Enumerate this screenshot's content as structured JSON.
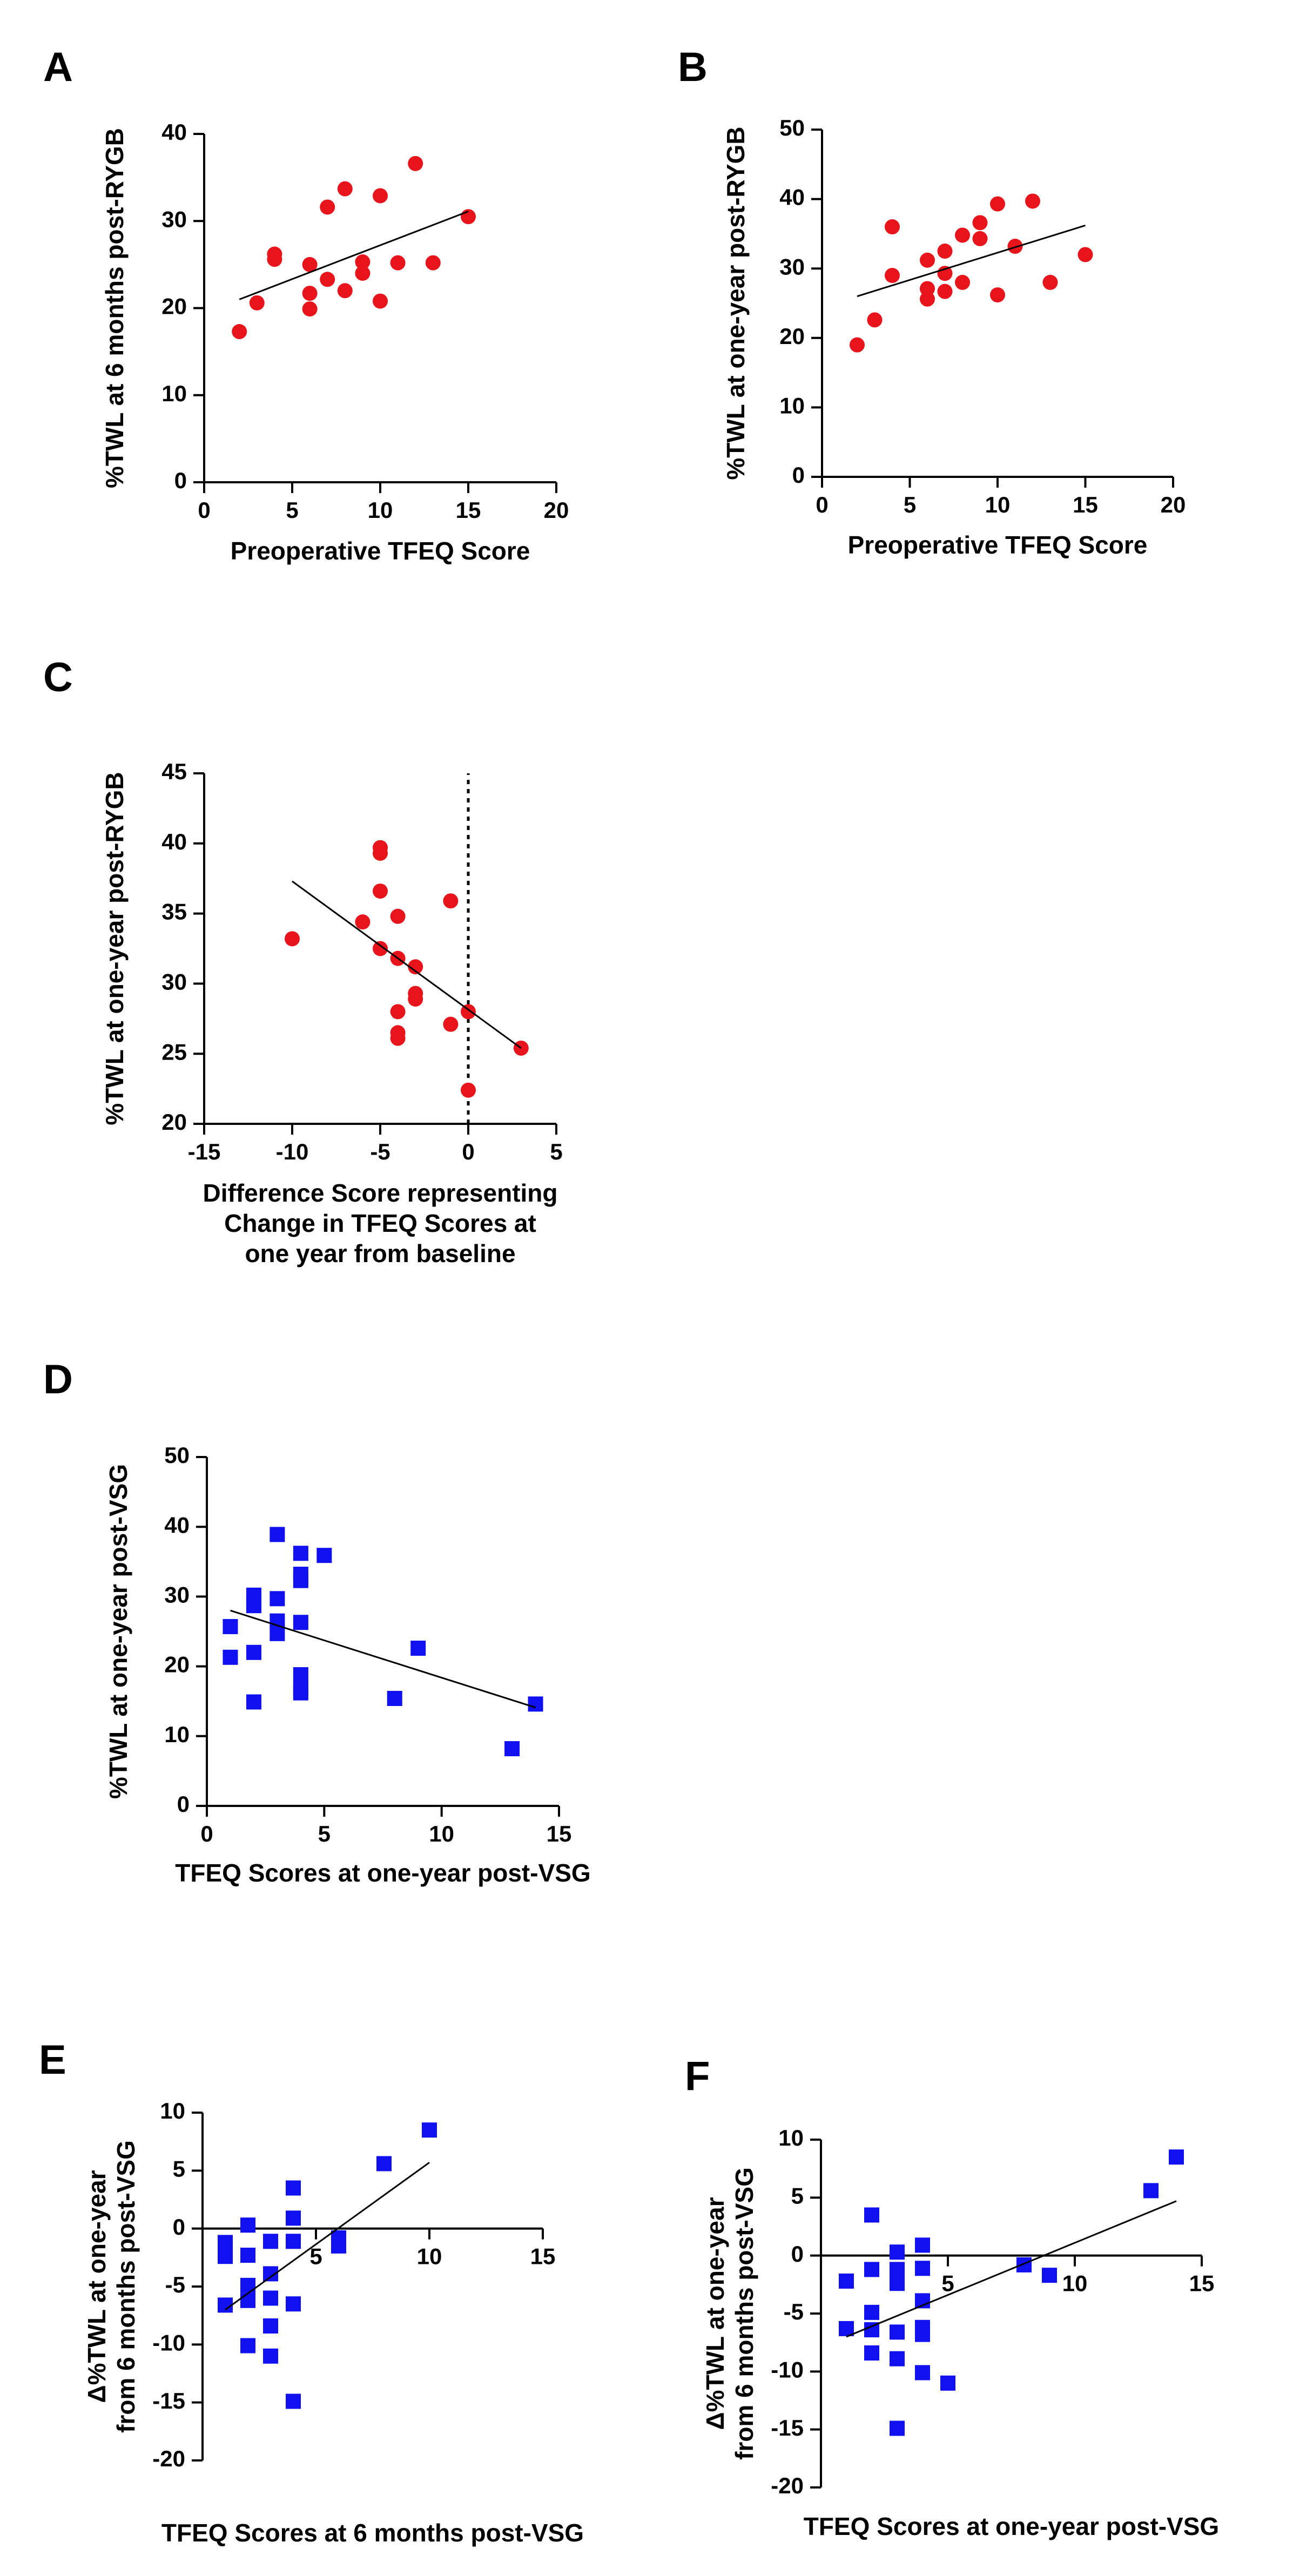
{
  "chart_data": [
    {
      "id": "A",
      "panel_letter": "A",
      "type": "scatter",
      "xlabel_lines": [
        "Preoperative TFEQ Score"
      ],
      "ylabel_lines": [
        "%TWL at 6 months post-RYGB"
      ],
      "xlim": [
        0,
        20
      ],
      "ylim": [
        0,
        40
      ],
      "xticks": [
        0,
        5,
        10,
        15,
        20
      ],
      "yticks": [
        0,
        10,
        20,
        30,
        40
      ],
      "x_axis_at": 0,
      "marker": "circle",
      "color": "#e8141b",
      "points": [
        [
          2,
          17.3
        ],
        [
          3,
          20.6
        ],
        [
          4,
          26.2
        ],
        [
          4,
          25.6
        ],
        [
          6,
          25
        ],
        [
          6,
          21.7
        ],
        [
          6,
          19.9
        ],
        [
          7,
          31.6
        ],
        [
          7,
          23.3
        ],
        [
          8,
          33.7
        ],
        [
          8,
          22
        ],
        [
          9,
          25.3
        ],
        [
          9,
          24
        ],
        [
          10,
          32.9
        ],
        [
          10,
          20.8
        ],
        [
          11,
          25.2
        ],
        [
          12,
          36.6
        ],
        [
          13,
          25.2
        ],
        [
          15,
          30.5
        ]
      ],
      "fit": [
        [
          2,
          21
        ],
        [
          15,
          31.1
        ]
      ],
      "vline": null
    },
    {
      "id": "B",
      "panel_letter": "B",
      "type": "scatter",
      "xlabel_lines": [
        "Preoperative TFEQ Score"
      ],
      "ylabel_lines": [
        "%TWL at one-year post-RYGB"
      ],
      "xlim": [
        0,
        20
      ],
      "ylim": [
        0,
        50
      ],
      "xticks": [
        0,
        5,
        10,
        15,
        20
      ],
      "yticks": [
        0,
        10,
        20,
        30,
        40,
        50
      ],
      "x_axis_at": 0,
      "marker": "circle",
      "color": "#e8141b",
      "points": [
        [
          2,
          19
        ],
        [
          3,
          22.6
        ],
        [
          4,
          36
        ],
        [
          4,
          29
        ],
        [
          6,
          31.2
        ],
        [
          6,
          27.1
        ],
        [
          6,
          25.6
        ],
        [
          7,
          32.5
        ],
        [
          7,
          29.3
        ],
        [
          7,
          26.7
        ],
        [
          8,
          34.8
        ],
        [
          8,
          28
        ],
        [
          9,
          36.6
        ],
        [
          9,
          34.3
        ],
        [
          10,
          39.3
        ],
        [
          10,
          26.2
        ],
        [
          11,
          33.2
        ],
        [
          12,
          39.7
        ],
        [
          13,
          28
        ],
        [
          15,
          32
        ]
      ],
      "fit": [
        [
          2,
          26
        ],
        [
          15,
          36.2
        ]
      ],
      "vline": null
    },
    {
      "id": "C",
      "panel_letter": "C",
      "type": "scatter",
      "xlabel_lines": [
        "Difference Score representing",
        "Change in TFEQ Scores at",
        "one year from baseline"
      ],
      "ylabel_lines": [
        "%TWL at one-year post-RYGB"
      ],
      "xlim": [
        -15,
        5
      ],
      "ylim": [
        20,
        45
      ],
      "xticks": [
        -15,
        -10,
        -5,
        0,
        5
      ],
      "yticks": [
        20,
        25,
        30,
        35,
        40,
        45
      ],
      "x_axis_at": 20,
      "marker": "circle",
      "color": "#e8141b",
      "points": [
        [
          -10,
          33.2
        ],
        [
          -6,
          34.4
        ],
        [
          -5,
          39.7
        ],
        [
          -5,
          39.3
        ],
        [
          -5,
          36.6
        ],
        [
          -5,
          32.5
        ],
        [
          -4,
          34.8
        ],
        [
          -4,
          31.8
        ],
        [
          -4,
          28
        ],
        [
          -4,
          26.5
        ],
        [
          -4,
          26.1
        ],
        [
          -3,
          31.2
        ],
        [
          -3,
          29.3
        ],
        [
          -3,
          28.9
        ],
        [
          -1,
          35.9
        ],
        [
          -1,
          27.1
        ],
        [
          0,
          28
        ],
        [
          0,
          22.4
        ],
        [
          3,
          25.4
        ]
      ],
      "fit": [
        [
          -10,
          37.3
        ],
        [
          3,
          25.4
        ]
      ],
      "vline": 0
    },
    {
      "id": "D",
      "panel_letter": "D",
      "type": "scatter",
      "xlabel_lines": [
        "TFEQ Scores at one-year post-VSG"
      ],
      "ylabel_lines": [
        "%TWL at one-year post-VSG"
      ],
      "xlim": [
        0,
        15
      ],
      "ylim": [
        0,
        50
      ],
      "xticks": [
        0,
        5,
        10,
        15
      ],
      "yticks": [
        0,
        10,
        20,
        30,
        40,
        50
      ],
      "x_axis_at": 0,
      "marker": "square",
      "color": "#1010f0",
      "points": [
        [
          1,
          25.7
        ],
        [
          1,
          21.3
        ],
        [
          2,
          30.2
        ],
        [
          2,
          29.2
        ],
        [
          2,
          28.7
        ],
        [
          2,
          22
        ],
        [
          2,
          14.9
        ],
        [
          3,
          38.9
        ],
        [
          3,
          29.7
        ],
        [
          3,
          26.5
        ],
        [
          3,
          24.7
        ],
        [
          4,
          36.2
        ],
        [
          4,
          33.2
        ],
        [
          4,
          32.3
        ],
        [
          4,
          26.3
        ],
        [
          4,
          18.8
        ],
        [
          4,
          16.8
        ],
        [
          4,
          16.2
        ],
        [
          5,
          35.9
        ],
        [
          8,
          15.4
        ],
        [
          9,
          22.6
        ],
        [
          13,
          8.2
        ],
        [
          14,
          14.6
        ]
      ],
      "fit": [
        [
          1,
          28
        ],
        [
          14,
          14.1
        ]
      ],
      "vline": null
    },
    {
      "id": "E",
      "panel_letter": "E",
      "type": "scatter",
      "xlabel_lines": [
        "TFEQ Scores at 6 months post-VSG"
      ],
      "ylabel_lines": [
        "Δ%TWL at one-year",
        "from 6 months post-VSG"
      ],
      "xlim": [
        0,
        15
      ],
      "ylim": [
        -20,
        10
      ],
      "xticks": [
        5,
        10,
        15
      ],
      "yticks": [
        -20,
        -15,
        -10,
        -5,
        0,
        5,
        10
      ],
      "x_axis_at": 0,
      "marker": "square",
      "color": "#1010f0",
      "points": [
        [
          1,
          -1.2
        ],
        [
          1,
          -2.4
        ],
        [
          1,
          -6.6
        ],
        [
          2,
          0.3
        ],
        [
          2,
          -2.3
        ],
        [
          2,
          -4.9
        ],
        [
          2,
          -6.2
        ],
        [
          2,
          -10.1
        ],
        [
          3,
          -1.1
        ],
        [
          3,
          -3.9
        ],
        [
          3,
          -6
        ],
        [
          3,
          -8.4
        ],
        [
          3,
          -11
        ],
        [
          4,
          3.5
        ],
        [
          4,
          0.9
        ],
        [
          4,
          -1.1
        ],
        [
          4,
          -6.5
        ],
        [
          4,
          -14.9
        ],
        [
          6,
          -0.8
        ],
        [
          6,
          -1.5
        ],
        [
          8,
          5.6
        ],
        [
          10,
          8.5
        ]
      ],
      "fit": [
        [
          1,
          -7
        ],
        [
          10,
          5.7
        ]
      ],
      "vline": null
    },
    {
      "id": "F",
      "panel_letter": "F",
      "type": "scatter",
      "xlabel_lines": [
        "TFEQ Scores at one-year post-VSG"
      ],
      "ylabel_lines": [
        "Δ%TWL at one-year",
        "from 6 months post-VSG"
      ],
      "xlim": [
        0,
        15
      ],
      "ylim": [
        -20,
        10
      ],
      "xticks": [
        5,
        10,
        15
      ],
      "yticks": [
        -20,
        -15,
        -10,
        -5,
        0,
        5,
        10
      ],
      "x_axis_at": 0,
      "marker": "square",
      "color": "#1010f0",
      "points": [
        [
          1,
          -2.2
        ],
        [
          1,
          -6.3
        ],
        [
          2,
          3.5
        ],
        [
          2,
          -1.2
        ],
        [
          2,
          -4.9
        ],
        [
          2,
          -6.4
        ],
        [
          2,
          -8.4
        ],
        [
          3,
          0.3
        ],
        [
          3,
          -1.2
        ],
        [
          3,
          -2.4
        ],
        [
          3,
          -6.6
        ],
        [
          3,
          -8.9
        ],
        [
          3,
          -14.9
        ],
        [
          4,
          0.9
        ],
        [
          4,
          -1.1
        ],
        [
          4,
          -3.9
        ],
        [
          4,
          -6.2
        ],
        [
          4,
          -6.8
        ],
        [
          4,
          -10.1
        ],
        [
          5,
          -11
        ],
        [
          8,
          -0.8
        ],
        [
          9,
          -1.7
        ],
        [
          13,
          5.6
        ],
        [
          14,
          8.5
        ]
      ],
      "fit": [
        [
          1,
          -7
        ],
        [
          14,
          4.7
        ]
      ],
      "vline": null
    }
  ]
}
